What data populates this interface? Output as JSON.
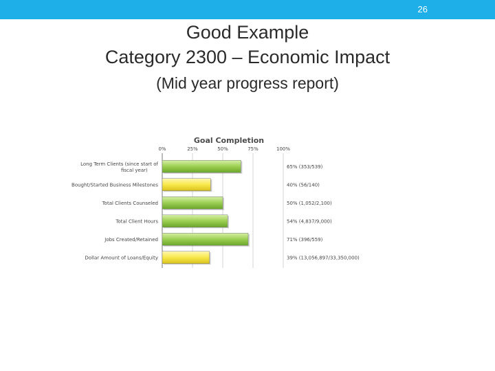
{
  "slide": {
    "page_number": "26",
    "title_line1": "Good Example",
    "title_line2": "Category 2300 – Economic Impact",
    "title_line3": "(Mid year progress report)",
    "accent_color": "#1eaee8"
  },
  "chart_data": {
    "type": "bar",
    "orientation": "horizontal",
    "title": "Goal Completion",
    "xlim": [
      0,
      100
    ],
    "x_ticks": [
      "0%",
      "25%",
      "50%",
      "75%",
      "100%"
    ],
    "grid": true,
    "categories": [
      [
        "Long Term Clients (since start of",
        "fiscal year)"
      ],
      [
        "Bought/Started Business Milestones"
      ],
      [
        "Total Clients Counseled"
      ],
      [
        "Total Client Hours"
      ],
      [
        "Jobs Created/Retained"
      ],
      [
        "Dollar Amount of Loans/Equity"
      ]
    ],
    "values": [
      65,
      40,
      50,
      54,
      71,
      39
    ],
    "value_labels": [
      "65% (353/539)",
      "40% (56/140)",
      "50% (1,052/2,100)",
      "54% (4,837/9,000)",
      "71% (396/559)",
      "39% (13,056,897/33,350,000)"
    ],
    "colors": [
      "#8cc63f",
      "#f5e23c",
      "#8cc63f",
      "#8cc63f",
      "#8cc63f",
      "#f5e23c"
    ]
  }
}
